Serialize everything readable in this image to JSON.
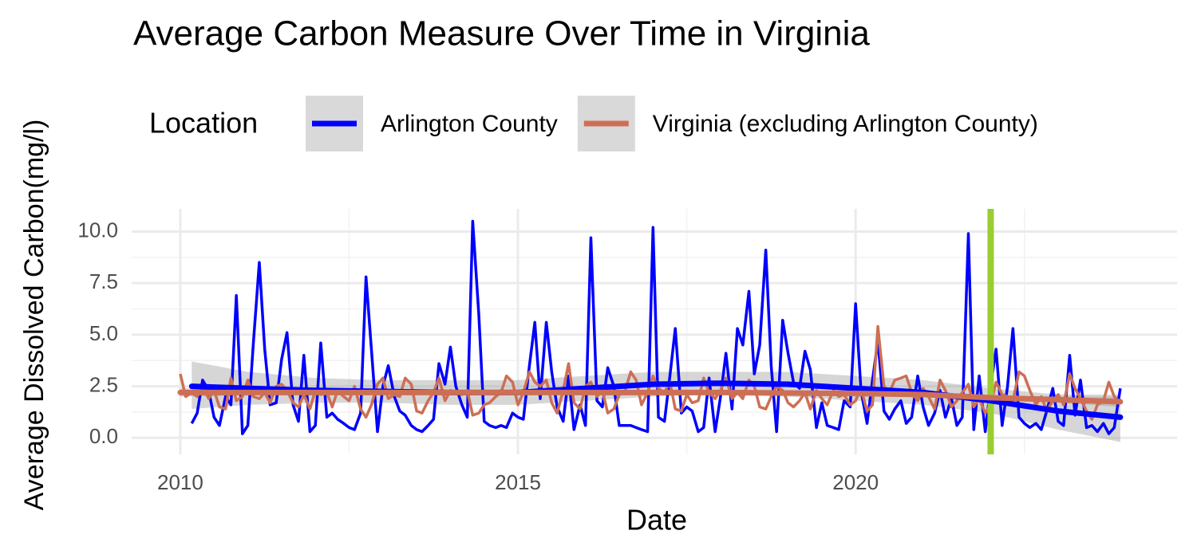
{
  "chart_data": {
    "type": "line",
    "title": "Average Carbon Measure Over Time in Virginia",
    "x_label": "Date",
    "y_label": "Average Dissolved Carbon(mg/l)",
    "legend_title": "Location",
    "legend": "top",
    "grid": true,
    "minor_grid": true,
    "xlim": [
      2009.28,
      2024.76
    ],
    "xticks": [
      2010,
      2015,
      2020
    ],
    "ylim": [
      -0.8,
      11.1
    ],
    "yticks": [
      {
        "value": 0,
        "label": "0.0"
      },
      2.5,
      {
        "value": 5,
        "label": "5.0"
      },
      7.5,
      {
        "value": 10,
        "label": "10.0"
      }
    ],
    "vline": {
      "x": 2022,
      "color": "#9acd32"
    },
    "x": [
      2010,
      2010.08,
      2010.17,
      2010.25,
      2010.33,
      2010.42,
      2010.5,
      2010.58,
      2010.67,
      2010.75,
      2010.83,
      2010.92,
      2011,
      2011.08,
      2011.17,
      2011.25,
      2011.33,
      2011.42,
      2011.5,
      2011.58,
      2011.67,
      2011.75,
      2011.83,
      2011.92,
      2012,
      2012.08,
      2012.17,
      2012.25,
      2012.33,
      2012.42,
      2012.5,
      2012.58,
      2012.67,
      2012.75,
      2012.83,
      2012.92,
      2013,
      2013.08,
      2013.17,
      2013.25,
      2013.33,
      2013.42,
      2013.5,
      2013.58,
      2013.67,
      2013.75,
      2013.83,
      2013.92,
      2014,
      2014.08,
      2014.17,
      2014.25,
      2014.33,
      2014.42,
      2014.5,
      2014.58,
      2014.67,
      2014.75,
      2014.83,
      2014.92,
      2015,
      2015.08,
      2015.17,
      2015.25,
      2015.33,
      2015.42,
      2015.5,
      2015.58,
      2015.67,
      2015.75,
      2015.83,
      2015.92,
      2016,
      2016.08,
      2016.17,
      2016.25,
      2016.33,
      2016.42,
      2016.5,
      2016.58,
      2016.67,
      2016.75,
      2016.83,
      2016.92,
      2017,
      2017.08,
      2017.17,
      2017.25,
      2017.33,
      2017.42,
      2017.5,
      2017.58,
      2017.67,
      2017.75,
      2017.83,
      2017.92,
      2018,
      2018.08,
      2018.17,
      2018.25,
      2018.33,
      2018.42,
      2018.5,
      2018.58,
      2018.67,
      2018.75,
      2018.83,
      2018.92,
      2019,
      2019.08,
      2019.17,
      2019.25,
      2019.33,
      2019.42,
      2019.5,
      2019.58,
      2019.67,
      2019.75,
      2019.83,
      2019.92,
      2020,
      2020.08,
      2020.17,
      2020.25,
      2020.33,
      2020.42,
      2020.5,
      2020.58,
      2020.67,
      2020.75,
      2020.83,
      2020.92,
      2021,
      2021.08,
      2021.17,
      2021.25,
      2021.33,
      2021.42,
      2021.5,
      2021.58,
      2021.67,
      2021.75,
      2021.83,
      2021.92,
      2022,
      2022.08,
      2022.17,
      2022.25,
      2022.33,
      2022.42,
      2022.5,
      2022.58,
      2022.67,
      2022.75,
      2022.83,
      2022.92,
      2023,
      2023.08,
      2023.17,
      2023.25,
      2023.33,
      2023.42,
      2023.5,
      2023.58,
      2023.67,
      2023.75,
      2023.83,
      2023.92
    ],
    "series": [
      {
        "name": "Arlington County",
        "color": "#0000ff",
        "values": [
          null,
          null,
          0.7,
          1.2,
          2.8,
          2.3,
          1.0,
          0.6,
          2.0,
          1.6,
          6.9,
          0.2,
          0.6,
          4.5,
          8.5,
          4.3,
          1.6,
          1.7,
          3.8,
          5.1,
          1.6,
          0.8,
          4.0,
          0.3,
          0.6,
          4.6,
          1.0,
          1.2,
          0.9,
          0.7,
          0.5,
          0.4,
          1.2,
          7.8,
          4.3,
          0.3,
          2.5,
          3.5,
          2.0,
          1.3,
          1.1,
          0.6,
          0.4,
          0.3,
          0.6,
          0.9,
          3.6,
          2.6,
          4.4,
          2.5,
          1.6,
          1.0,
          10.5,
          6.0,
          0.8,
          0.6,
          0.5,
          0.6,
          0.5,
          1.2,
          1.0,
          0.9,
          3.5,
          5.6,
          1.9,
          5.6,
          3.2,
          1.5,
          0.8,
          3.0,
          0.4,
          1.6,
          0.6,
          9.7,
          1.8,
          1.5,
          3.4,
          2.5,
          0.6,
          0.6,
          0.6,
          0.5,
          0.4,
          0.3,
          10.2,
          1.0,
          0.8,
          3.0,
          5.3,
          1.2,
          1.5,
          1.3,
          0.3,
          0.5,
          2.9,
          0.3,
          2.0,
          4.1,
          1.4,
          5.3,
          4.5,
          7.1,
          3.1,
          4.5,
          9.1,
          3.5,
          0.3,
          5.7,
          4.1,
          2.7,
          2.4,
          4.2,
          3.3,
          0.5,
          1.7,
          0.6,
          0.5,
          0.4,
          1.8,
          1.5,
          6.5,
          2.3,
          0.7,
          2.8,
          4.7,
          1.3,
          0.9,
          1.4,
          1.8,
          0.7,
          1.0,
          3.0,
          1.5,
          0.6,
          1.2,
          2.3,
          1.0,
          1.9,
          0.6,
          1.0,
          9.9,
          0.4,
          3.0,
          0.3,
          2.5,
          4.3,
          0.6,
          2.5,
          5.3,
          1.0,
          0.7,
          0.5,
          0.7,
          0.4,
          1.3,
          2.4,
          0.8,
          0.6,
          4.0,
          1.1,
          2.8,
          0.5,
          0.6,
          0.3,
          0.7,
          0.2,
          0.5,
          2.4
        ],
        "trend": {
          "x": [
            2010.17,
            2011,
            2012,
            2013,
            2014,
            2015,
            2016,
            2017,
            2018,
            2019,
            2020,
            2021,
            2022,
            2023,
            2023.92
          ],
          "values": [
            2.5,
            2.4,
            2.3,
            2.25,
            2.2,
            2.2,
            2.4,
            2.6,
            2.65,
            2.6,
            2.4,
            2.2,
            1.8,
            1.3,
            1.0
          ],
          "lower": [
            1.4,
            1.6,
            1.7,
            1.7,
            1.6,
            1.6,
            1.8,
            2.0,
            2.1,
            2.0,
            1.8,
            1.6,
            1.2,
            0.4,
            -0.2
          ],
          "upper": [
            3.7,
            3.2,
            2.9,
            2.8,
            2.8,
            2.8,
            3.0,
            3.2,
            3.2,
            3.2,
            3.0,
            2.8,
            2.4,
            2.1,
            2.1
          ]
        }
      },
      {
        "name": "Virginia (excluding Arlington County)",
        "color": "#cd6f55",
        "values": [
          3.1,
          2.0,
          2.2,
          2.0,
          2.5,
          1.9,
          2.3,
          1.5,
          1.4,
          2.9,
          1.8,
          2.0,
          2.8,
          2.0,
          1.9,
          2.2,
          1.7,
          2.5,
          2.6,
          2.3,
          1.7,
          1.5,
          2.1,
          1.4,
          2.3,
          2.1,
          2.2,
          1.5,
          2.3,
          2.0,
          1.8,
          2.5,
          1.4,
          1.0,
          1.6,
          2.6,
          2.9,
          1.9,
          2.1,
          2.0,
          2.9,
          2.6,
          1.3,
          1.2,
          1.8,
          2.2,
          2.9,
          1.8,
          2.3,
          2.2,
          2.1,
          2.3,
          1.1,
          1.2,
          1.6,
          1.7,
          2.0,
          2.2,
          3.0,
          2.7,
          1.6,
          2.2,
          3.2,
          2.7,
          2.5,
          2.8,
          1.7,
          1.2,
          2.3,
          3.6,
          1.7,
          1.4,
          2.5,
          2.7,
          2.0,
          2.3,
          1.2,
          1.4,
          2.1,
          2.2,
          3.2,
          2.8,
          1.6,
          2.2,
          3.0,
          2.4,
          2.2,
          2.7,
          1.4,
          1.3,
          2.1,
          1.7,
          1.8,
          2.9,
          2.2,
          1.9,
          2.3,
          2.9,
          1.9,
          2.2,
          1.9,
          2.8,
          2.5,
          1.5,
          1.4,
          2.0,
          2.5,
          2.3,
          1.7,
          1.5,
          1.8,
          2.2,
          1.4,
          2.3,
          1.9,
          1.6,
          2.3,
          2.0,
          2.1,
          1.6,
          1.8,
          2.4,
          1.3,
          1.6,
          5.4,
          2.5,
          2.2,
          2.8,
          2.9,
          3.0,
          2.2,
          1.8,
          2.4,
          2.0,
          1.4,
          2.8,
          2.3,
          1.5,
          1.8,
          2.2,
          2.6,
          1.5,
          1.9,
          1.2,
          1.6,
          2.7,
          2.1,
          2.0,
          1.8,
          3.2,
          3.0,
          2.3,
          1.6,
          2.0,
          1.3,
          1.8,
          2.1,
          1.6,
          3.1,
          2.4,
          1.9,
          1.3,
          0.9,
          1.6,
          1.8,
          2.7,
          2.0,
          1.7
        ],
        "trend": {
          "x": [
            2010,
            2012,
            2014,
            2016,
            2018,
            2020,
            2021,
            2022,
            2023,
            2023.92
          ],
          "values": [
            2.2,
            2.2,
            2.2,
            2.2,
            2.2,
            2.15,
            2.1,
            1.95,
            1.85,
            1.75
          ],
          "lower": [
            2.0,
            2.1,
            2.1,
            2.1,
            2.1,
            2.05,
            2.0,
            1.85,
            1.7,
            1.5
          ],
          "upper": [
            2.4,
            2.3,
            2.3,
            2.3,
            2.3,
            2.25,
            2.2,
            2.05,
            2.0,
            2.0
          ]
        }
      }
    ]
  }
}
